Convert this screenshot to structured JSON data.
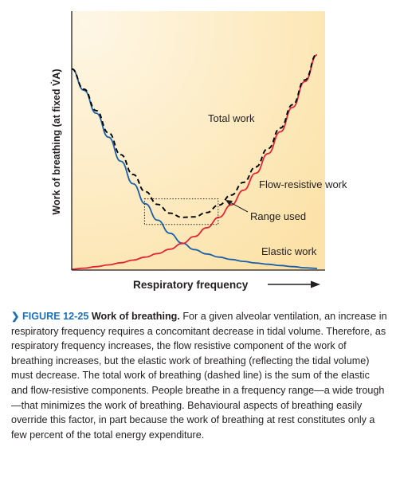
{
  "chart_data": {
    "type": "line",
    "title": "",
    "xlabel": "Respiratory frequency",
    "ylabel": "Work of breathing (at fixed V̇A)",
    "grid": false,
    "background_gradient": [
      "#fef7e6",
      "#fce2a8"
    ],
    "x": [
      0,
      0.05,
      0.1,
      0.15,
      0.2,
      0.25,
      0.3,
      0.35,
      0.4,
      0.45,
      0.5,
      0.55,
      0.6,
      0.65,
      0.7,
      0.75,
      0.8,
      0.85,
      0.9,
      0.95,
      1.0
    ],
    "series": [
      {
        "name": "Elastic work",
        "color": "#1a5fa8",
        "style": "solid",
        "values": [
          0.918,
          0.82,
          0.715,
          0.605,
          0.495,
          0.392,
          0.3,
          0.225,
          0.165,
          0.12,
          0.09,
          0.07,
          0.056,
          0.045,
          0.036,
          0.029,
          0.023,
          0.017,
          0.012,
          0.007,
          0.004
        ]
      },
      {
        "name": "Flow-resistive work",
        "color": "#e32636",
        "style": "solid",
        "values": [
          0.0,
          0.005,
          0.012,
          0.02,
          0.03,
          0.042,
          0.056,
          0.072,
          0.092,
          0.118,
          0.15,
          0.19,
          0.238,
          0.295,
          0.362,
          0.44,
          0.53,
          0.63,
          0.742,
          0.86,
          0.982
        ]
      },
      {
        "name": "Total work",
        "color": "#000000",
        "style": "dashed",
        "values": [
          0.918,
          0.825,
          0.727,
          0.625,
          0.525,
          0.434,
          0.356,
          0.297,
          0.257,
          0.238,
          0.24,
          0.26,
          0.294,
          0.34,
          0.398,
          0.469,
          0.553,
          0.647,
          0.754,
          0.867,
          0.986
        ]
      }
    ],
    "annotations": [
      {
        "text": "Total work",
        "series": "Total work"
      },
      {
        "text": "Flow-resistive work",
        "series": "Flow-resistive work"
      },
      {
        "text": "Range used",
        "x_range": [
          0.3,
          0.6
        ],
        "y_range": [
          0.22,
          0.33
        ]
      },
      {
        "text": "Elastic work",
        "series": "Elastic work"
      }
    ]
  },
  "caption": {
    "label": "❯ FIGURE 12-25",
    "title": "Work of breathing.",
    "body": "For a given alveolar ventilation, an increase in respiratory frequency requires a concomitant decrease in tidal volume. Therefore, as respiratory frequency increases, the flow resistive component of the work of breathing increases, but the elastic work of breathing (reflecting the tidal volume) must decrease. The total work of breathing (dashed line) is the sum of the elastic and flow-resistive components. People breathe in a frequency range—a wide trough—that minimizes the work of breathing. Behavioural aspects of breathing easily override this factor, in part because the work of breathing at rest constitutes only a few percent of the total energy expenditure."
  }
}
